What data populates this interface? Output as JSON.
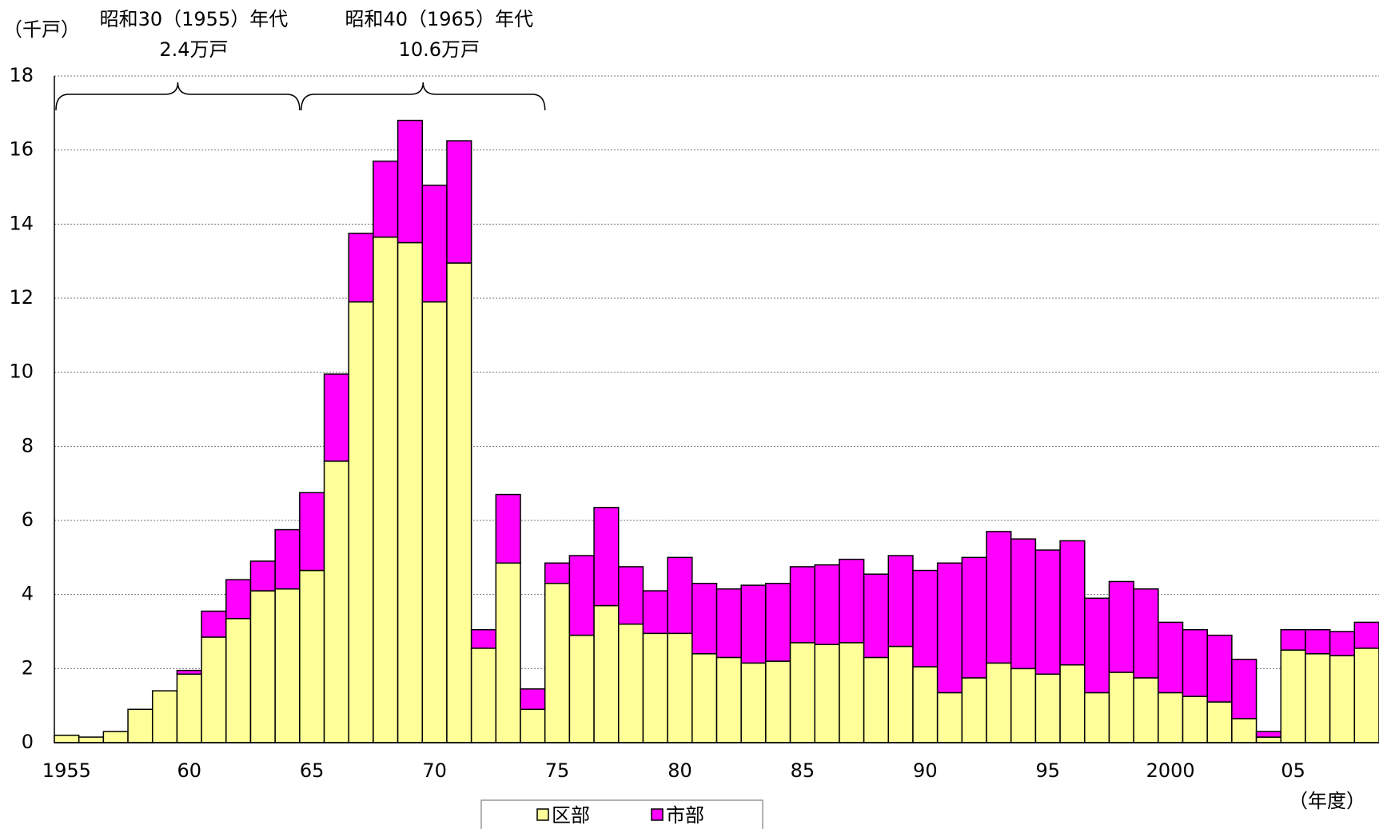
{
  "chart_data": {
    "type": "stacked-bar",
    "y_axis_label": "（千戸）",
    "x_axis_label": "（年度）",
    "annotations": [
      {
        "label": "昭和30（1955）年代",
        "total": "2.4万戸"
      },
      {
        "label": "昭和40（1965）年代",
        "total": "10.6万戸"
      }
    ],
    "categories": [
      "1955",
      null,
      null,
      null,
      null,
      "60",
      null,
      null,
      null,
      null,
      "65",
      null,
      null,
      null,
      null,
      "70",
      null,
      null,
      null,
      null,
      "75",
      null,
      null,
      null,
      null,
      "80",
      null,
      null,
      null,
      null,
      "85",
      null,
      null,
      null,
      null,
      "90",
      null,
      null,
      null,
      null,
      "95",
      null,
      null,
      null,
      null,
      "2000",
      null,
      null,
      null,
      null,
      "05",
      null,
      null,
      null
    ],
    "series": [
      {
        "name": "区部",
        "color": "#ffff99",
        "values": [
          0.2,
          0.15,
          0.3,
          0.9,
          1.4,
          1.85,
          2.85,
          3.35,
          4.1,
          4.15,
          4.65,
          7.6,
          11.9,
          13.65,
          13.5,
          11.9,
          12.95,
          2.55,
          4.85,
          0.9,
          4.3,
          2.9,
          3.7,
          3.2,
          2.95,
          2.95,
          2.4,
          2.3,
          2.15,
          2.2,
          2.7,
          2.65,
          2.7,
          2.3,
          2.6,
          2.05,
          1.35,
          1.75,
          2.15,
          2.0,
          1.85,
          2.1,
          1.35,
          1.9,
          1.75,
          1.35,
          1.25,
          1.1,
          0.65,
          0.15,
          2.5,
          2.4,
          2.35,
          2.55
        ]
      },
      {
        "name": "市部",
        "color": "#ff00ff",
        "values": [
          0,
          0,
          0,
          0,
          0,
          0.1,
          0.7,
          1.05,
          0.8,
          1.6,
          2.1,
          2.35,
          1.85,
          2.05,
          3.3,
          3.15,
          3.3,
          0.5,
          1.85,
          0.55,
          0.55,
          2.15,
          2.65,
          1.55,
          1.15,
          2.05,
          1.9,
          1.85,
          2.1,
          2.1,
          2.05,
          2.15,
          2.25,
          2.25,
          2.45,
          2.6,
          3.5,
          3.25,
          3.55,
          3.5,
          3.35,
          3.35,
          2.55,
          2.45,
          2.4,
          1.9,
          1.8,
          1.8,
          1.6,
          0.15,
          0.55,
          0.65,
          0.65,
          0.7
        ]
      }
    ],
    "ylim": [
      0,
      18
    ],
    "yticks": [
      0,
      2,
      4,
      6,
      8,
      10,
      12,
      14,
      16,
      18
    ],
    "grid": true
  }
}
